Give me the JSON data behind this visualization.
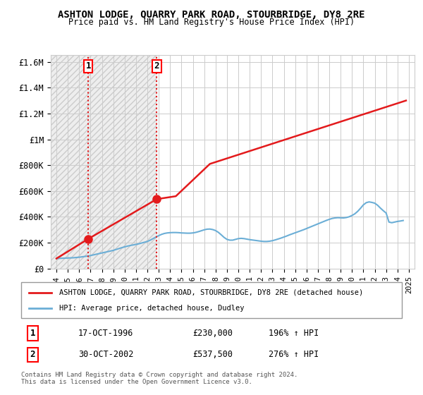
{
  "title": "ASHTON LODGE, QUARRY PARK ROAD, STOURBRIDGE, DY8 2RE",
  "subtitle": "Price paid vs. HM Land Registry's House Price Index (HPI)",
  "sale1_date": 1996.8,
  "sale1_price": 230000,
  "sale1_label": "1",
  "sale2_date": 2002.83,
  "sale2_price": 537500,
  "sale2_label": "2",
  "hpi_color": "#6baed6",
  "price_color": "#e31a1c",
  "vline_color": "#e31a1c",
  "hatching_color": "#d0d0d0",
  "ylim": [
    0,
    1650000
  ],
  "xlim_left": 1993.5,
  "xlim_right": 2025.5,
  "xticks": [
    1994,
    1995,
    1996,
    1997,
    1998,
    1999,
    2000,
    2001,
    2002,
    2003,
    2004,
    2005,
    2006,
    2007,
    2008,
    2009,
    2010,
    2011,
    2012,
    2013,
    2014,
    2015,
    2016,
    2017,
    2018,
    2019,
    2020,
    2021,
    2022,
    2023,
    2024,
    2025
  ],
  "ytick_labels": [
    "£0",
    "£200K",
    "£400K",
    "£600K",
    "£800K",
    "£1M",
    "£1.2M",
    "£1.4M",
    "£1.6M"
  ],
  "ytick_values": [
    0,
    200000,
    400000,
    600000,
    800000,
    1000000,
    1200000,
    1400000,
    1600000
  ],
  "legend_entry1": "ASHTON LODGE, QUARRY PARK ROAD, STOURBRIDGE, DY8 2RE (detached house)",
  "legend_entry2": "HPI: Average price, detached house, Dudley",
  "table_row1_num": "1",
  "table_row1_date": "17-OCT-1996",
  "table_row1_price": "£230,000",
  "table_row1_hpi": "196% ↑ HPI",
  "table_row2_num": "2",
  "table_row2_date": "30-OCT-2002",
  "table_row2_price": "£537,500",
  "table_row2_hpi": "276% ↑ HPI",
  "footnote": "Contains HM Land Registry data © Crown copyright and database right 2024.\nThis data is licensed under the Open Government Licence v3.0.",
  "hatch_end": 1996.8,
  "hatch_end2": 2002.83,
  "hpi_data_x": [
    1994.0,
    1994.25,
    1994.5,
    1994.75,
    1995.0,
    1995.25,
    1995.5,
    1995.75,
    1996.0,
    1996.25,
    1996.5,
    1996.75,
    1997.0,
    1997.25,
    1997.5,
    1997.75,
    1998.0,
    1998.25,
    1998.5,
    1998.75,
    1999.0,
    1999.25,
    1999.5,
    1999.75,
    2000.0,
    2000.25,
    2000.5,
    2000.75,
    2001.0,
    2001.25,
    2001.5,
    2001.75,
    2002.0,
    2002.25,
    2002.5,
    2002.75,
    2003.0,
    2003.25,
    2003.5,
    2003.75,
    2004.0,
    2004.25,
    2004.5,
    2004.75,
    2005.0,
    2005.25,
    2005.5,
    2005.75,
    2006.0,
    2006.25,
    2006.5,
    2006.75,
    2007.0,
    2007.25,
    2007.5,
    2007.75,
    2008.0,
    2008.25,
    2008.5,
    2008.75,
    2009.0,
    2009.25,
    2009.5,
    2009.75,
    2010.0,
    2010.25,
    2010.5,
    2010.75,
    2011.0,
    2011.25,
    2011.5,
    2011.75,
    2012.0,
    2012.25,
    2012.5,
    2012.75,
    2013.0,
    2013.25,
    2013.5,
    2013.75,
    2014.0,
    2014.25,
    2014.5,
    2014.75,
    2015.0,
    2015.25,
    2015.5,
    2015.75,
    2016.0,
    2016.25,
    2016.5,
    2016.75,
    2017.0,
    2017.25,
    2017.5,
    2017.75,
    2018.0,
    2018.25,
    2018.5,
    2018.75,
    2019.0,
    2019.25,
    2019.5,
    2019.75,
    2020.0,
    2020.25,
    2020.5,
    2020.75,
    2021.0,
    2021.25,
    2021.5,
    2021.75,
    2022.0,
    2022.25,
    2022.5,
    2022.75,
    2023.0,
    2023.25,
    2023.5,
    2023.75,
    2024.0,
    2024.25,
    2024.5
  ],
  "hpi_data_y": [
    78000,
    79000,
    80000,
    81000,
    82000,
    83000,
    84000,
    86000,
    88000,
    91000,
    94000,
    97000,
    101000,
    106000,
    111000,
    116000,
    121000,
    126000,
    131000,
    136000,
    141000,
    148000,
    155000,
    162000,
    168000,
    174000,
    179000,
    183000,
    187000,
    192000,
    198000,
    204000,
    210000,
    220000,
    232000,
    244000,
    255000,
    265000,
    272000,
    276000,
    278000,
    279000,
    279000,
    278000,
    276000,
    275000,
    274000,
    274000,
    276000,
    280000,
    286000,
    293000,
    300000,
    305000,
    306000,
    302000,
    294000,
    280000,
    261000,
    241000,
    226000,
    220000,
    220000,
    226000,
    232000,
    234000,
    232000,
    228000,
    224000,
    221000,
    218000,
    215000,
    212000,
    210000,
    210000,
    212000,
    216000,
    222000,
    229000,
    236000,
    244000,
    252000,
    261000,
    269000,
    277000,
    285000,
    293000,
    301000,
    310000,
    319000,
    328000,
    337000,
    346000,
    355000,
    364000,
    373000,
    381000,
    388000,
    392000,
    394000,
    393000,
    392000,
    395000,
    401000,
    411000,
    424000,
    443000,
    467000,
    493000,
    510000,
    516000,
    512000,
    506000,
    490000,
    468000,
    448000,
    430000,
    360000,
    355000,
    360000,
    365000,
    368000,
    372000
  ],
  "price_data_x": [
    1994.0,
    1996.8,
    2002.83,
    2004.5,
    2007.5,
    2024.75
  ],
  "price_data_y": [
    78000,
    230000,
    537500,
    560000,
    810000,
    1300000
  ]
}
